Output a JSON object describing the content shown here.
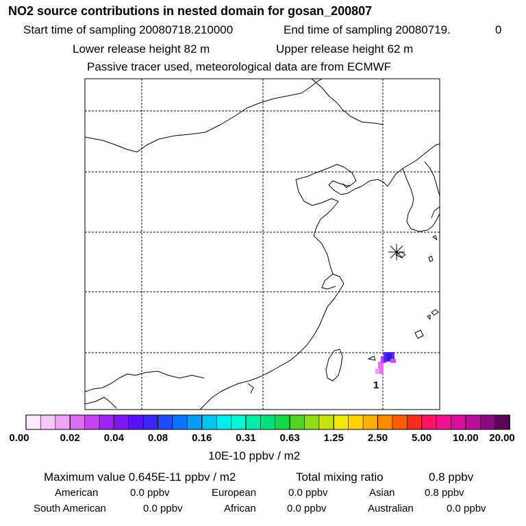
{
  "header": {
    "title": "NO2 source contributions in nested domain for gosan_200807",
    "start_label": "Start time of sampling 20080718.210000",
    "end_label": "End time of sampling 20080719.",
    "end_suffix": "0",
    "lower_release": "Lower release height   82 m",
    "upper_release": "Upper release height   62 m",
    "tracer_note": "Passive tracer used, meteorological data are from ECMWF"
  },
  "map": {
    "marker_label": "1",
    "receptor_symbol": "receptor-star"
  },
  "colorbar": {
    "colors": [
      "#fde8fd",
      "#f7c6fa",
      "#eea4f6",
      "#de6ef0",
      "#c545ef",
      "#a222f2",
      "#7e16f4",
      "#5a10f7",
      "#3a26fb",
      "#1e4cfb",
      "#0a74fb",
      "#009cf8",
      "#00c6f4",
      "#00ecec",
      "#00f7d2",
      "#00ecab",
      "#00e07e",
      "#14d74a",
      "#52d424",
      "#90dc1a",
      "#c6e20e",
      "#f0ea0a",
      "#ffd200",
      "#ffb000",
      "#ff8a00",
      "#ff5a00",
      "#ff2a1e",
      "#ff1464",
      "#f41090",
      "#d9109e",
      "#b80e9a",
      "#8c0a84",
      "#5a0654"
    ],
    "ticks": [
      "0.00",
      "0.02",
      "0.04",
      "0.08",
      "0.16",
      "0.31",
      "0.63",
      "1.25",
      "2.50",
      "5.00",
      "10.00",
      "20.00"
    ],
    "units": "10E-10 ppbv / m2"
  },
  "summary": {
    "maximum": "Maximum value  0.645E-11 ppbv / m2",
    "total_label": "Total mixing ratio",
    "total_value": "0.8 ppbv",
    "regions": [
      {
        "name": "American",
        "value": "0.0 ppbv"
      },
      {
        "name": "European",
        "value": "0.0 ppbv"
      },
      {
        "name": "Asian",
        "value": "0.8 ppbv"
      },
      {
        "name": "South American",
        "value": "0.0 ppbv"
      },
      {
        "name": "African",
        "value": "0.0 ppbv"
      },
      {
        "name": "Australian",
        "value": "0.0 ppbv"
      }
    ]
  }
}
